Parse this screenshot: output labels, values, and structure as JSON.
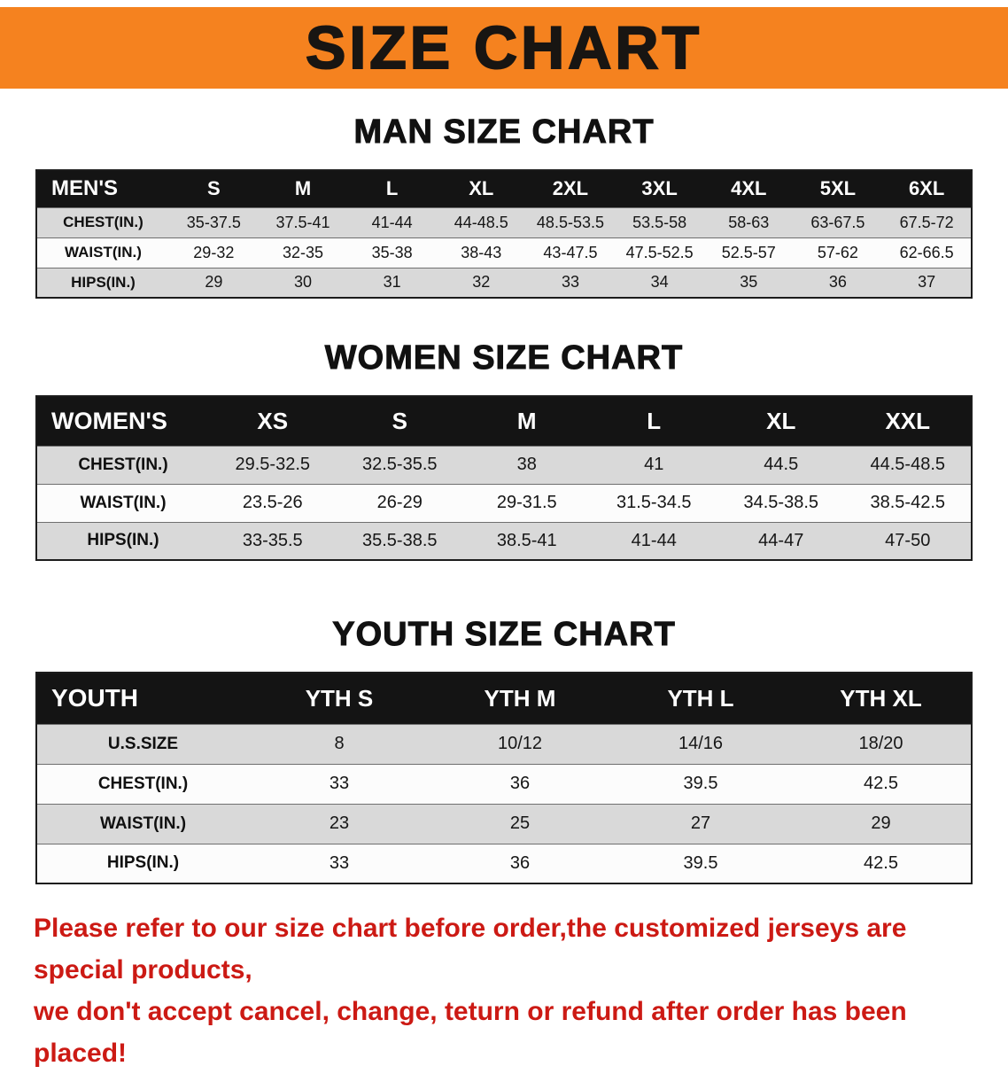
{
  "banner": {
    "title": "SIZE CHART"
  },
  "sections": [
    {
      "heading": "MAN SIZE CHART",
      "table": {
        "header": [
          "MEN'S",
          "S",
          "M",
          "L",
          "XL",
          "2XL",
          "3XL",
          "4XL",
          "5XL",
          "6XL"
        ],
        "rows": [
          {
            "label": "CHEST(IN.)",
            "values": [
              "35-37.5",
              "37.5-41",
              "41-44",
              "44-48.5",
              "48.5-53.5",
              "53.5-58",
              "58-63",
              "63-67.5",
              "67.5-72"
            ]
          },
          {
            "label": "WAIST(IN.)",
            "values": [
              "29-32",
              "32-35",
              "35-38",
              "38-43",
              "43-47.5",
              "47.5-52.5",
              "52.5-57",
              "57-62",
              "62-66.5"
            ]
          },
          {
            "label": "HIPS(IN.)",
            "values": [
              "29",
              "30",
              "31",
              "32",
              "33",
              "34",
              "35",
              "36",
              "37"
            ]
          }
        ]
      }
    },
    {
      "heading": "WOMEN SIZE CHART",
      "table": {
        "header": [
          "WOMEN'S",
          "XS",
          "S",
          "M",
          "L",
          "XL",
          "XXL"
        ],
        "rows": [
          {
            "label": "CHEST(IN.)",
            "values": [
              "29.5-32.5",
              "32.5-35.5",
              "38",
              "41",
              "44.5",
              "44.5-48.5"
            ]
          },
          {
            "label": "WAIST(IN.)",
            "values": [
              "23.5-26",
              "26-29",
              "29-31.5",
              "31.5-34.5",
              "34.5-38.5",
              "38.5-42.5"
            ]
          },
          {
            "label": "HIPS(IN.)",
            "values": [
              "33-35.5",
              "35.5-38.5",
              "38.5-41",
              "41-44",
              "44-47",
              "47-50"
            ]
          }
        ]
      }
    },
    {
      "heading": "YOUTH SIZE CHART",
      "table": {
        "header": [
          "YOUTH",
          "YTH S",
          "YTH M",
          "YTH L",
          "YTH XL"
        ],
        "rows": [
          {
            "label": "U.S.SIZE",
            "values": [
              "8",
              "10/12",
              "14/16",
              "18/20"
            ]
          },
          {
            "label": "CHEST(IN.)",
            "values": [
              "33",
              "36",
              "39.5",
              "42.5"
            ]
          },
          {
            "label": "WAIST(IN.)",
            "values": [
              "23",
              "25",
              "27",
              "29"
            ]
          },
          {
            "label": "HIPS(IN.)",
            "values": [
              "33",
              "36",
              "39.5",
              "42.5"
            ]
          }
        ]
      }
    }
  ],
  "disclaimer": {
    "line1": "Please refer to our size chart before order,the customized jerseys are special products,",
    "line2": "we don't accept cancel, change, teturn or refund after order has been placed!"
  },
  "colors": {
    "banner_bg": "#f5821f",
    "table_header_bg": "#141414",
    "row_alt_bg": "#d9d9d9",
    "disclaimer_red": "#cc1a14"
  }
}
